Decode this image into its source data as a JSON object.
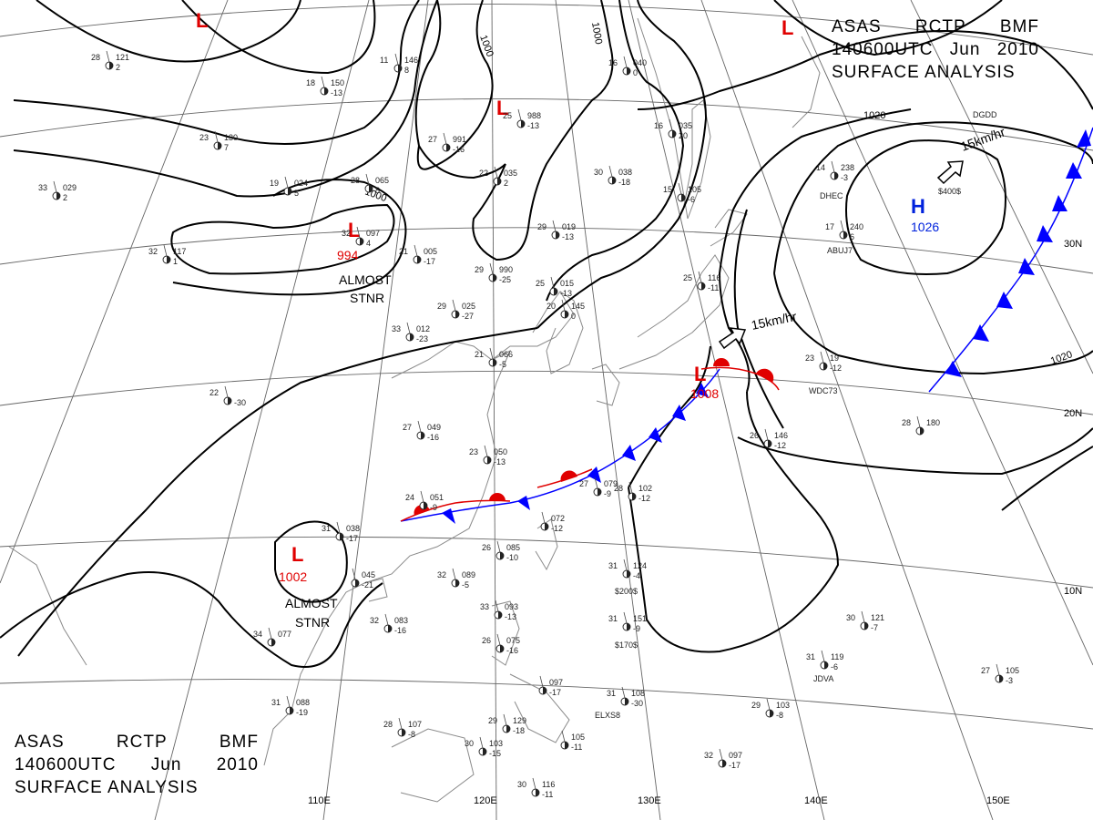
{
  "header": {
    "agency": "ASAS",
    "station": "RCTP",
    "office": "BMF",
    "valid_time": "140600UTC",
    "month": "Jun",
    "year": "2010",
    "product": "SURFACE ANALYSIS"
  },
  "pressure_centers": [
    {
      "id": "low-nw-corner",
      "type": "L",
      "value": ""
    },
    {
      "id": "low-north-edge",
      "type": "L",
      "value": ""
    },
    {
      "id": "low-mongolia",
      "type": "L",
      "value": "994",
      "motion": "ALMOST STNR"
    },
    {
      "id": "low-north-china",
      "type": "L",
      "value": ""
    },
    {
      "id": "low-indochina",
      "type": "L",
      "value": "1002",
      "motion": "ALMOST STNR"
    },
    {
      "id": "low-japan-front",
      "type": "L",
      "value": "1008"
    },
    {
      "id": "high-pacific",
      "type": "H",
      "value": "1026"
    }
  ],
  "isobar_labels": [
    "1000",
    "1000",
    "1000",
    "1020",
    "1020"
  ],
  "motion_labels": [
    "15km/hr",
    "15km/hr"
  ],
  "longitude_labels": [
    "110E",
    "120E",
    "130E",
    "140E",
    "150E"
  ],
  "latitude_labels": [
    "30N",
    "20N",
    "10N"
  ],
  "station_labels": [
    "$400$",
    "$200$",
    "$170$",
    "DHEC",
    "ABUJ7",
    "WDC73",
    "JDVA",
    "ELXS8",
    "DGDD"
  ],
  "station_plots": [
    {
      "id": "s01",
      "t": "28",
      "p": "121",
      "c": "2"
    },
    {
      "id": "s02",
      "t": "18",
      "p": "150",
      "c": "-13"
    },
    {
      "id": "s03",
      "t": "11",
      "p": "146",
      "c": "8"
    },
    {
      "id": "s04",
      "t": "23",
      "p": "130",
      "c": "7"
    },
    {
      "id": "s05",
      "t": "32",
      "p": "117",
      "c": "1"
    },
    {
      "id": "s06",
      "t": "33",
      "p": "029",
      "c": "2"
    },
    {
      "id": "s07",
      "t": "19",
      "p": "024",
      "c": "5"
    },
    {
      "id": "s08",
      "t": "28",
      "p": "065",
      "c": "8"
    },
    {
      "id": "s09",
      "t": "32",
      "p": "097",
      "c": "4"
    },
    {
      "id": "s10",
      "t": "27",
      "p": "991",
      "c": "-16"
    },
    {
      "id": "s11",
      "t": "25",
      "p": "988",
      "c": "-13"
    },
    {
      "id": "s12",
      "t": "22",
      "p": "035",
      "c": "2"
    },
    {
      "id": "s13",
      "t": "29",
      "p": "019",
      "c": "-13"
    },
    {
      "id": "s14",
      "t": "21",
      "p": "005",
      "c": "-17"
    },
    {
      "id": "s15",
      "t": "29",
      "p": "990",
      "c": "-25"
    },
    {
      "id": "s16",
      "t": "25",
      "p": "015",
      "c": "-13"
    },
    {
      "id": "s17",
      "t": "29",
      "p": "025",
      "c": "-27"
    },
    {
      "id": "s18",
      "t": "33",
      "p": "012",
      "c": "-23"
    },
    {
      "id": "s19",
      "t": "21",
      "p": "066",
      "c": "-5"
    },
    {
      "id": "s20",
      "t": "20",
      "p": "145",
      "c": "0"
    },
    {
      "id": "s21",
      "t": "16",
      "p": "040",
      "c": "0"
    },
    {
      "id": "s22",
      "t": "16",
      "p": "035",
      "c": "20"
    },
    {
      "id": "s23",
      "t": "30",
      "p": "038",
      "c": "-18"
    },
    {
      "id": "s24",
      "t": "15",
      "p": "105",
      "c": "-6"
    },
    {
      "id": "s25",
      "t": "25",
      "p": "116",
      "c": "-11"
    },
    {
      "id": "s26",
      "t": "14",
      "p": "238",
      "c": "-3"
    },
    {
      "id": "s27",
      "t": "17",
      "p": "240",
      "c": "6"
    },
    {
      "id": "s28",
      "t": "22",
      "p": "",
      "c": "-30"
    },
    {
      "id": "s29",
      "t": "27",
      "p": "049",
      "c": "-16"
    },
    {
      "id": "s30",
      "t": "23",
      "p": "050",
      "c": "-13"
    },
    {
      "id": "s31",
      "t": "24",
      "p": "051",
      "c": "-9"
    },
    {
      "id": "s32",
      "t": "27",
      "p": "079",
      "c": "-9"
    },
    {
      "id": "s33",
      "t": "",
      "p": "072",
      "c": "-12"
    },
    {
      "id": "s34",
      "t": "31",
      "p": "038",
      "c": "-17"
    },
    {
      "id": "s35",
      "t": "",
      "p": "045",
      "c": "-21"
    },
    {
      "id": "s36",
      "t": "32",
      "p": "083",
      "c": "-16"
    },
    {
      "id": "s37",
      "t": "34",
      "p": "077",
      "c": ""
    },
    {
      "id": "s38",
      "t": "32",
      "p": "089",
      "c": "-5"
    },
    {
      "id": "s39",
      "t": "33",
      "p": "093",
      "c": "-13"
    },
    {
      "id": "s40",
      "t": "26",
      "p": "075",
      "c": "-16"
    },
    {
      "id": "s41",
      "t": "26",
      "p": "085",
      "c": "-10"
    },
    {
      "id": "s42",
      "t": "28",
      "p": "102",
      "c": "-12"
    },
    {
      "id": "s43",
      "t": "31",
      "p": "124",
      "c": "-4"
    },
    {
      "id": "s44",
      "t": "31",
      "p": "151",
      "c": "-9"
    },
    {
      "id": "s45",
      "t": "26",
      "p": "146",
      "c": "-12"
    },
    {
      "id": "s46",
      "t": "23",
      "p": "19",
      "c": "-12"
    },
    {
      "id": "s47",
      "t": "28",
      "p": "180",
      "c": ""
    },
    {
      "id": "s48",
      "t": "30",
      "p": "121",
      "c": "-7"
    },
    {
      "id": "s49",
      "t": "31",
      "p": "119",
      "c": "-6"
    },
    {
      "id": "s50",
      "t": "27",
      "p": "105",
      "c": "-3"
    },
    {
      "id": "s51",
      "t": "31",
      "p": "108",
      "c": "-30"
    },
    {
      "id": "s52",
      "t": "29",
      "p": "103",
      "c": "-8"
    },
    {
      "id": "s53",
      "t": "32",
      "p": "097",
      "c": "-17"
    },
    {
      "id": "s54",
      "t": "31",
      "p": "088",
      "c": "-19"
    },
    {
      "id": "s55",
      "t": "28",
      "p": "107",
      "c": "-8"
    },
    {
      "id": "s56",
      "t": "30",
      "p": "103",
      "c": "-15"
    },
    {
      "id": "s57",
      "t": "29",
      "p": "129",
      "c": "-18"
    },
    {
      "id": "s58",
      "t": "30",
      "p": "116",
      "c": "-11"
    },
    {
      "id": "s59",
      "t": "",
      "p": "105",
      "c": "-11"
    },
    {
      "id": "s60",
      "t": "",
      "p": "097",
      "c": "-17"
    }
  ],
  "colors": {
    "isobar": "#000000",
    "grid": "#555555",
    "coast": "#8a8a8a",
    "low": "#e00000",
    "high": "#0022dd",
    "cold_front": "#0000ff",
    "warm_front": "#e00000"
  }
}
